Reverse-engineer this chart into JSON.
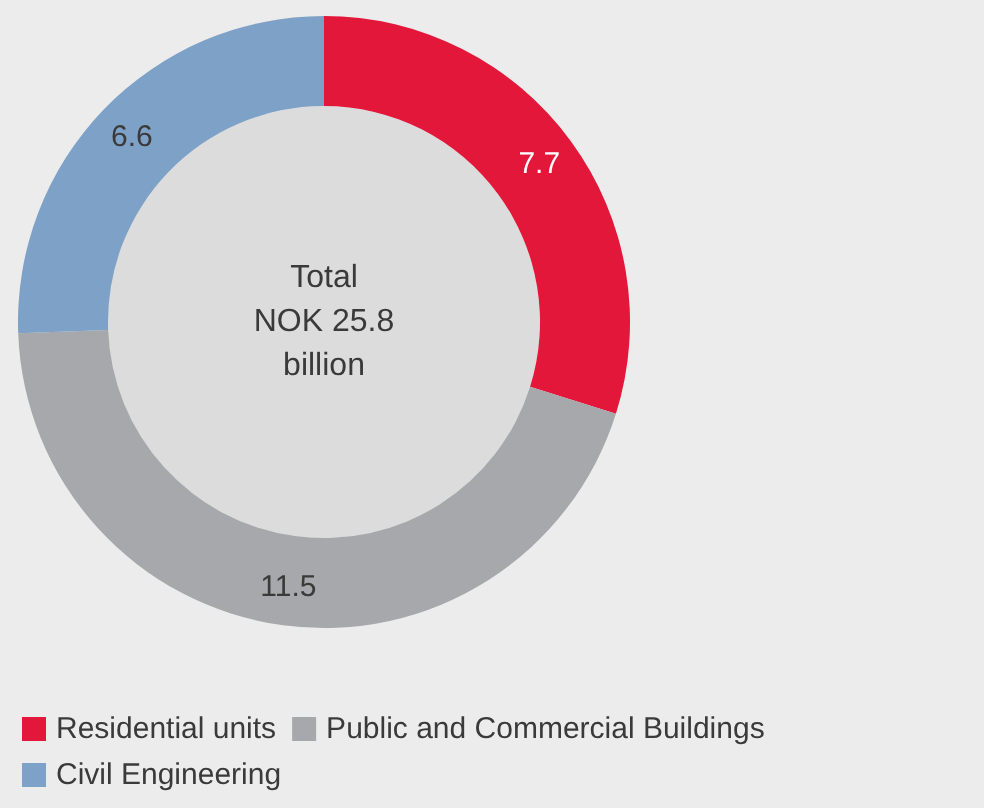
{
  "chart_data": {
    "type": "donut",
    "categories": [
      "Residential units",
      "Public and Commercial Buildings",
      "Civil Engineering"
    ],
    "values": [
      7.7,
      11.5,
      6.6
    ],
    "colors": [
      "#e3173a",
      "#a6a8ab",
      "#7ea1c7"
    ],
    "data_labels": true,
    "legend": "bottom",
    "annotations": [
      "Total\nNOK 25.8\nbillion"
    ]
  }
}
